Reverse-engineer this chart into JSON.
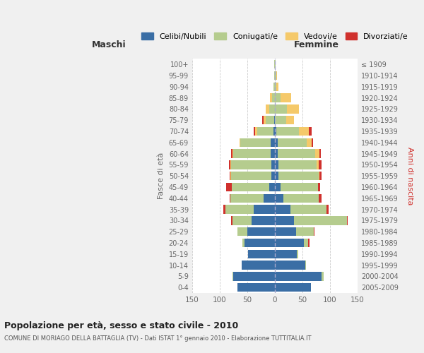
{
  "age_groups": [
    "0-4",
    "5-9",
    "10-14",
    "15-19",
    "20-24",
    "25-29",
    "30-34",
    "35-39",
    "40-44",
    "45-49",
    "50-54",
    "55-59",
    "60-64",
    "65-69",
    "70-74",
    "75-79",
    "80-84",
    "85-89",
    "90-94",
    "95-99",
    "100+"
  ],
  "birth_years": [
    "2005-2009",
    "2000-2004",
    "1995-1999",
    "1990-1994",
    "1985-1989",
    "1980-1984",
    "1975-1979",
    "1970-1974",
    "1965-1969",
    "1960-1964",
    "1955-1959",
    "1950-1954",
    "1945-1949",
    "1940-1944",
    "1935-1939",
    "1930-1934",
    "1925-1929",
    "1920-1924",
    "1915-1919",
    "1910-1914",
    "≤ 1909"
  ],
  "maschi": {
    "celibi": [
      68,
      75,
      60,
      48,
      55,
      50,
      42,
      38,
      20,
      10,
      7,
      7,
      8,
      8,
      2,
      1,
      0,
      0,
      0,
      0,
      0
    ],
    "coniugati": [
      0,
      2,
      0,
      1,
      4,
      18,
      35,
      52,
      60,
      68,
      72,
      72,
      68,
      55,
      30,
      16,
      10,
      5,
      2,
      1,
      1
    ],
    "vedovi": [
      0,
      0,
      0,
      0,
      0,
      0,
      0,
      0,
      0,
      0,
      1,
      1,
      1,
      1,
      4,
      4,
      6,
      4,
      1,
      0,
      0
    ],
    "divorziati": [
      0,
      0,
      0,
      0,
      0,
      0,
      2,
      3,
      2,
      10,
      2,
      3,
      2,
      0,
      3,
      2,
      0,
      0,
      0,
      0,
      0
    ]
  },
  "femmine": {
    "nubili": [
      65,
      85,
      55,
      40,
      52,
      38,
      35,
      28,
      15,
      10,
      7,
      6,
      5,
      5,
      2,
      0,
      0,
      0,
      0,
      0,
      0
    ],
    "coniugate": [
      0,
      3,
      1,
      2,
      8,
      32,
      95,
      65,
      65,
      68,
      72,
      70,
      68,
      52,
      42,
      20,
      22,
      10,
      2,
      2,
      1
    ],
    "vedove": [
      0,
      0,
      0,
      0,
      0,
      0,
      0,
      0,
      0,
      0,
      2,
      4,
      8,
      10,
      18,
      15,
      22,
      20,
      5,
      2,
      0
    ],
    "divorziate": [
      0,
      0,
      0,
      0,
      3,
      2,
      2,
      4,
      4,
      4,
      4,
      4,
      2,
      2,
      4,
      0,
      0,
      0,
      0,
      0,
      0
    ]
  },
  "colors": {
    "celibi": "#3a6ea5",
    "coniugati": "#b5cc8e",
    "vedovi": "#f5c96a",
    "divorziati": "#d0312d"
  },
  "xlim": 150,
  "title": "Popolazione per età, sesso e stato civile - 2010",
  "subtitle": "COMUNE DI MORIAGO DELLA BATTAGLIA (TV) - Dati ISTAT 1° gennaio 2010 - Elaborazione TUTTITALIA.IT",
  "xlabel_left": "Maschi",
  "xlabel_right": "Femmine",
  "ylabel_left": "Fasce di età",
  "ylabel_right": "Anni di nascita",
  "bg_color": "#f0f0f0",
  "plot_bg": "#ffffff"
}
